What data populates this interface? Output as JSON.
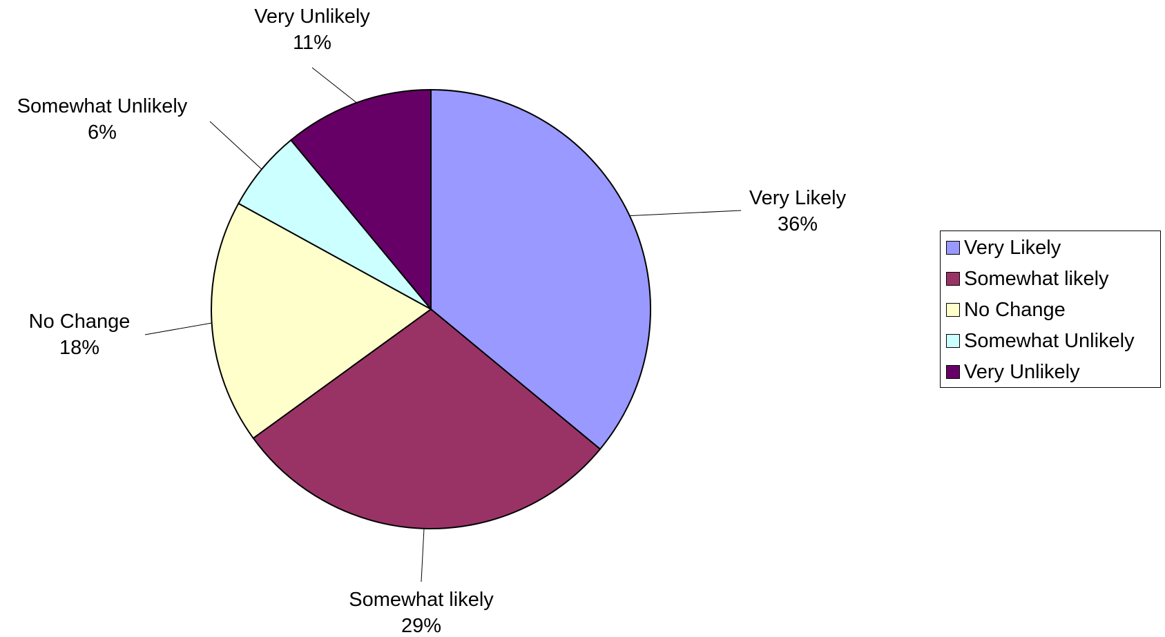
{
  "chart_data": {
    "type": "pie",
    "title": "",
    "legend_position": "right",
    "slices": [
      {
        "label": "Very Likely",
        "value": 36,
        "value_label": "36%",
        "color": "#9999FF"
      },
      {
        "label": "Somewhat likely",
        "value": 29,
        "value_label": "29%",
        "color": "#993366"
      },
      {
        "label": "No Change",
        "value": 18,
        "value_label": "18%",
        "color": "#FFFFCC"
      },
      {
        "label": "Somewhat Unlikely",
        "value": 6,
        "value_label": "6%",
        "color": "#CCFFFF"
      },
      {
        "label": "Very Unlikely",
        "value": 11,
        "value_label": "11%",
        "color": "#660066"
      }
    ]
  }
}
